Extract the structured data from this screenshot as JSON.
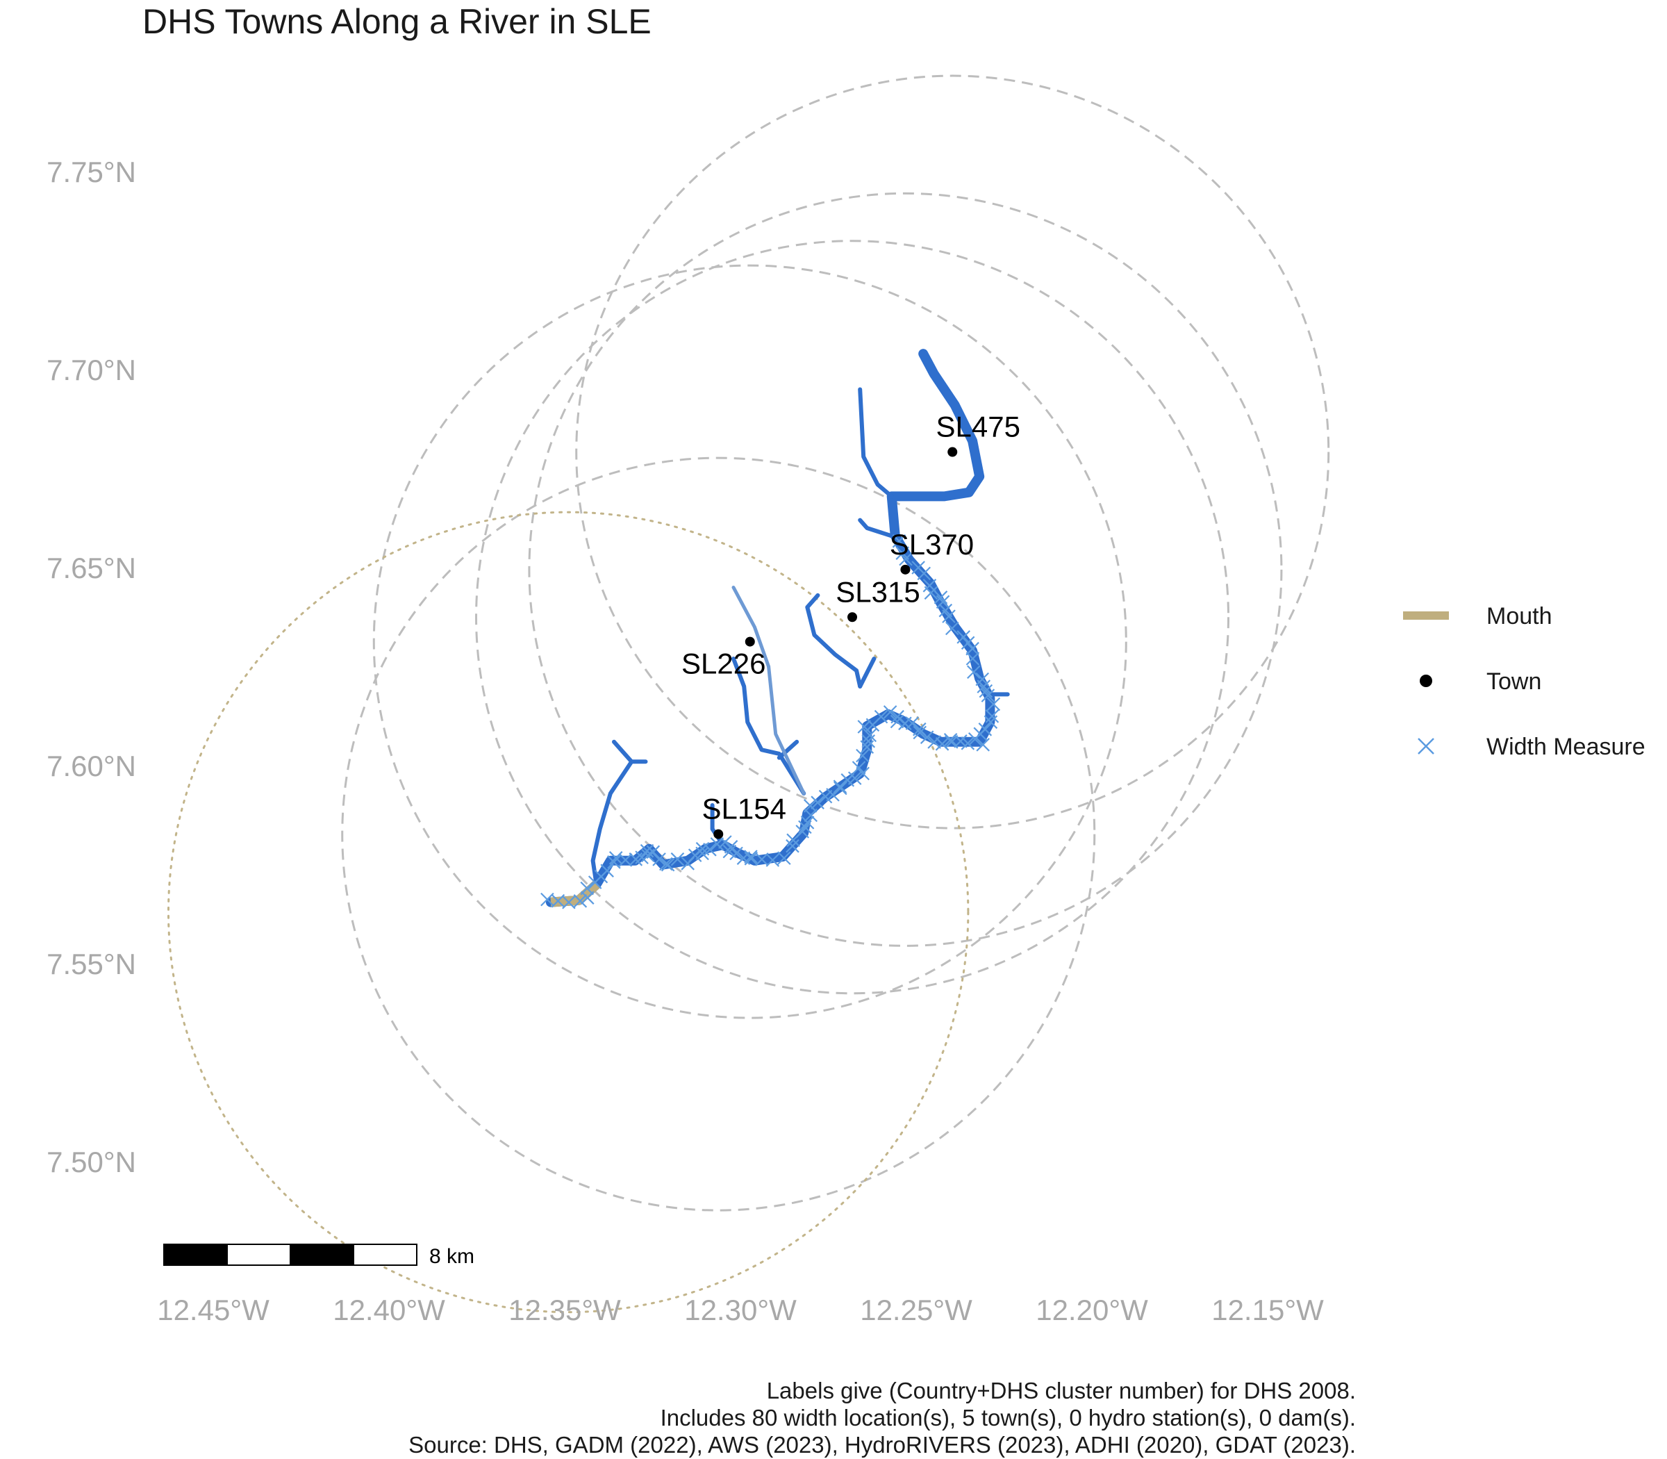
{
  "title": "DHS Towns Along a River in SLE",
  "colors": {
    "river": "#2F6FCD",
    "river_light": "#6E9AD4",
    "mouth": "#BFAE7E",
    "town": "#000000",
    "width_measure": "#5B9BE0",
    "buffer": "#BDBDBD",
    "mouth_buffer": "#C2B48A",
    "axis_text": "#A8A8A8"
  },
  "map": {
    "lon_range": [
      -12.47,
      -12.13
    ],
    "lat_range": [
      7.48,
      7.77
    ],
    "x_ticks": [
      {
        "value": -12.45,
        "label": "12.45°W"
      },
      {
        "value": -12.4,
        "label": "12.40°W"
      },
      {
        "value": -12.35,
        "label": "12.35°W"
      },
      {
        "value": -12.3,
        "label": "12.30°W"
      },
      {
        "value": -12.25,
        "label": "12.25°W"
      },
      {
        "value": -12.2,
        "label": "12.20°W"
      },
      {
        "value": -12.15,
        "label": "12.15°W"
      }
    ],
    "y_ticks": [
      {
        "value": 7.75,
        "label": "7.75°N"
      },
      {
        "value": 7.7,
        "label": "7.70°N"
      },
      {
        "value": 7.65,
        "label": "7.65°N"
      },
      {
        "value": 7.6,
        "label": "7.60°N"
      },
      {
        "value": 7.55,
        "label": "7.55°N"
      },
      {
        "value": 7.5,
        "label": "7.50°N"
      }
    ],
    "towns": [
      {
        "id": "SL475",
        "lon": -12.2377,
        "lat": 7.6792
      },
      {
        "id": "SL370",
        "lon": -12.2511,
        "lat": 7.6495
      },
      {
        "id": "SL315",
        "lon": -12.2662,
        "lat": 7.6375
      },
      {
        "id": "SL226",
        "lon": -12.2953,
        "lat": 7.6313
      },
      {
        "id": "SL154",
        "lon": -12.3043,
        "lat": 7.5827
      }
    ],
    "mouth": {
      "lon": -12.34,
      "lat": 7.57
    },
    "buffers": [
      {
        "lon": -12.2377,
        "lat": 7.6792,
        "radius_deg": 0.095
      },
      {
        "lon": -12.2511,
        "lat": 7.6495,
        "radius_deg": 0.095
      },
      {
        "lon": -12.2662,
        "lat": 7.6375,
        "radius_deg": 0.095
      },
      {
        "lon": -12.2953,
        "lat": 7.6313,
        "radius_deg": 0.095
      },
      {
        "lon": -12.3043,
        "lat": 7.5827,
        "radius_deg": 0.095
      }
    ],
    "mouth_buffer": {
      "lon": -12.347,
      "lat": 7.563,
      "radius_deg": 0.101
    },
    "rivers": [
      {
        "order": "main",
        "points": [
          [
            -12.352,
            7.5655
          ],
          [
            -12.344,
            7.566
          ],
          [
            -12.339,
            7.57
          ],
          [
            -12.335,
            7.576
          ],
          [
            -12.328,
            7.576
          ],
          [
            -12.324,
            7.579
          ],
          [
            -12.32,
            7.575
          ],
          [
            -12.313,
            7.576
          ],
          [
            -12.308,
            7.579
          ],
          [
            -12.303,
            7.58
          ],
          [
            -12.299,
            7.578
          ],
          [
            -12.294,
            7.576
          ],
          [
            -12.286,
            7.577
          ],
          [
            -12.28,
            7.583
          ],
          [
            -12.279,
            7.588
          ],
          [
            -12.274,
            7.592
          ],
          [
            -12.269,
            7.595
          ],
          [
            -12.264,
            7.598
          ],
          [
            -12.262,
            7.604
          ],
          [
            -12.262,
            7.61
          ],
          [
            -12.256,
            7.613
          ],
          [
            -12.251,
            7.611
          ],
          [
            -12.246,
            7.608
          ],
          [
            -12.241,
            7.606
          ],
          [
            -12.235,
            7.606
          ],
          [
            -12.23,
            7.606
          ],
          [
            -12.227,
            7.611
          ],
          [
            -12.227,
            7.617
          ],
          [
            -12.23,
            7.622
          ],
          [
            -12.232,
            7.629
          ],
          [
            -12.237,
            7.635
          ],
          [
            -12.241,
            7.641
          ],
          [
            -12.244,
            7.646
          ],
          [
            -12.25,
            7.652
          ],
          [
            -12.254,
            7.658
          ],
          [
            -12.255,
            7.668
          ],
          [
            -12.248,
            7.668
          ],
          [
            -12.24,
            7.668
          ],
          [
            -12.233,
            7.669
          ],
          [
            -12.23,
            7.673
          ],
          [
            -12.232,
            7.682
          ],
          [
            -12.237,
            7.691
          ],
          [
            -12.243,
            7.699
          ],
          [
            -12.246,
            7.704
          ]
        ]
      },
      {
        "order": "trib",
        "points": [
          [
            -12.264,
            7.62
          ],
          [
            -12.265,
            7.624
          ],
          [
            -12.271,
            7.628
          ],
          [
            -12.277,
            7.633
          ],
          [
            -12.279,
            7.64
          ],
          [
            -12.276,
            7.643
          ]
        ]
      },
      {
        "order": "trib",
        "points": [
          [
            -12.264,
            7.62
          ],
          [
            -12.26,
            7.627
          ]
        ]
      },
      {
        "order": "trib",
        "points": [
          [
            -12.255,
            7.658
          ],
          [
            -12.262,
            7.66
          ],
          [
            -12.264,
            7.662
          ]
        ]
      },
      {
        "order": "trib",
        "points": [
          [
            -12.255,
            7.668
          ],
          [
            -12.259,
            7.671
          ],
          [
            -12.263,
            7.678
          ],
          [
            -12.264,
            7.695
          ]
        ]
      },
      {
        "order": "trib",
        "points": [
          [
            -12.227,
            7.618
          ],
          [
            -12.222,
            7.618
          ]
        ]
      },
      {
        "order": "trib",
        "points": [
          [
            -12.28,
            7.593
          ],
          [
            -12.287,
            7.603
          ],
          [
            -12.292,
            7.604
          ],
          [
            -12.296,
            7.611
          ],
          [
            -12.297,
            7.62
          ],
          [
            -12.3,
            7.627
          ]
        ]
      },
      {
        "order": "trib",
        "points": [
          [
            -12.287,
            7.602
          ],
          [
            -12.282,
            7.606
          ]
        ]
      },
      {
        "order": "trib",
        "points": [
          [
            -12.303,
            7.58
          ],
          [
            -12.306,
            7.584
          ],
          [
            -12.306,
            7.59
          ]
        ]
      },
      {
        "order": "trib",
        "points": [
          [
            -12.339,
            7.57
          ],
          [
            -12.34,
            7.576
          ],
          [
            -12.338,
            7.584
          ],
          [
            -12.335,
            7.593
          ],
          [
            -12.329,
            7.601
          ],
          [
            -12.325,
            7.601
          ]
        ]
      },
      {
        "order": "trib",
        "points": [
          [
            -12.329,
            7.601
          ],
          [
            -12.334,
            7.606
          ]
        ]
      },
      {
        "order": "light",
        "points": [
          [
            -12.28,
            7.593
          ],
          [
            -12.288,
            7.608
          ],
          [
            -12.29,
            7.625
          ]
        ]
      },
      {
        "order": "light",
        "points": [
          [
            -12.29,
            7.625
          ],
          [
            -12.294,
            7.635
          ],
          [
            -12.3,
            7.645
          ]
        ]
      }
    ],
    "scale_bar": {
      "label": "8 km",
      "segments": 4
    }
  },
  "legend": [
    {
      "key": "mouth",
      "label": "Mouth"
    },
    {
      "key": "town",
      "label": "Town"
    },
    {
      "key": "width",
      "label": "Width Measure"
    }
  ],
  "caption": [
    "Labels give (Country+DHS cluster number) for DHS 2008.",
    "Includes 80 width location(s), 5 town(s), 0 hydro station(s), 0 dam(s).",
    "Source: DHS, GADM (2022), AWS (2023), HydroRIVERS (2023), ADHI (2020), GDAT (2023)."
  ]
}
